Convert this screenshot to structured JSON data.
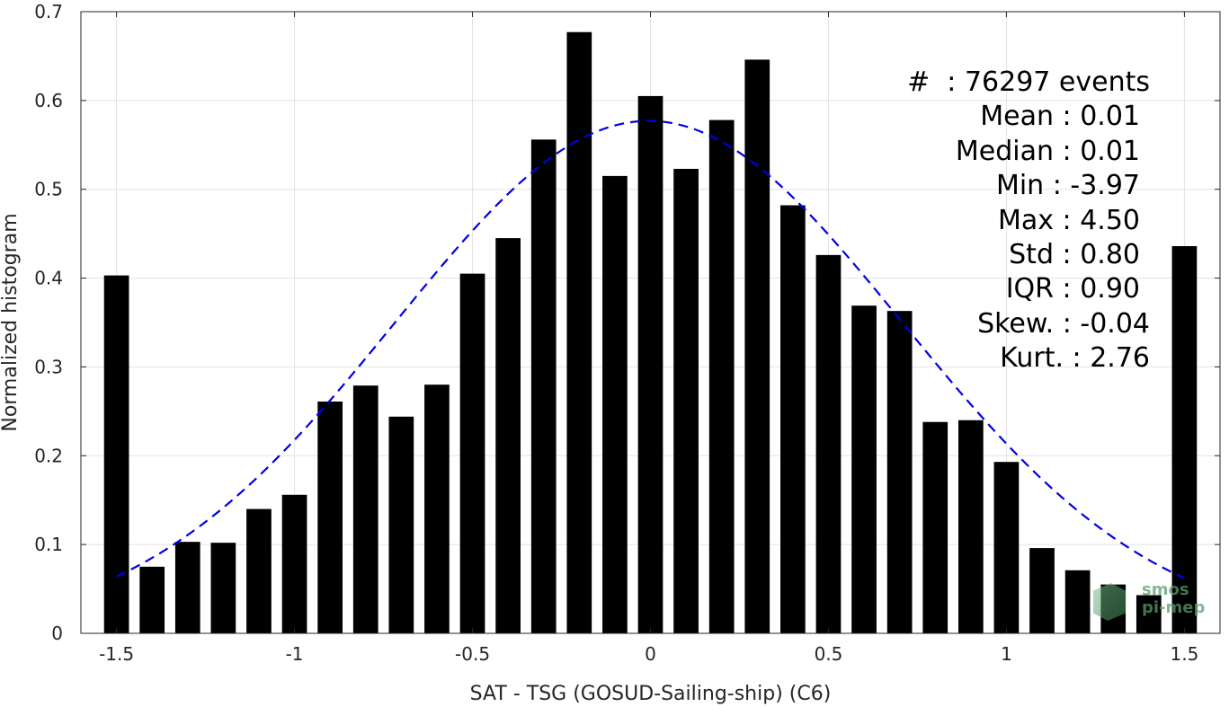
{
  "chart_data": {
    "type": "bar",
    "title": "",
    "xlabel": "SAT - TSG (GOSUD-Sailing-ship) (C6)",
    "ylabel": "Normalized histogram",
    "xlim": [
      -1.6,
      1.6
    ],
    "ylim": [
      0,
      0.7
    ],
    "xticks": [
      -1.5,
      -1,
      -0.5,
      0,
      0.5,
      1,
      1.5
    ],
    "xtick_labels": [
      "-1.5",
      "-1",
      "-0.5",
      "0",
      "0.5",
      "1",
      "1.5"
    ],
    "yticks": [
      0,
      0.1,
      0.2,
      0.3,
      0.4,
      0.5,
      0.6,
      0.7
    ],
    "ytick_labels": [
      "0",
      "0.1",
      "0.2",
      "0.3",
      "0.4",
      "0.5",
      "0.6",
      "0.7"
    ],
    "grid": true,
    "bar_color": "#000000",
    "bin_width": 0.1,
    "x": [
      -1.5,
      -1.4,
      -1.3,
      -1.2,
      -1.1,
      -1.0,
      -0.9,
      -0.8,
      -0.7,
      -0.6,
      -0.5,
      -0.4,
      -0.3,
      -0.2,
      -0.1,
      0.0,
      0.1,
      0.2,
      0.3,
      0.4,
      0.5,
      0.6,
      0.7,
      0.8,
      0.9,
      1.0,
      1.1,
      1.2,
      1.3,
      1.4,
      1.5
    ],
    "values": [
      0.403,
      0.075,
      0.103,
      0.102,
      0.14,
      0.156,
      0.261,
      0.279,
      0.244,
      0.28,
      0.405,
      0.445,
      0.556,
      0.677,
      0.515,
      0.605,
      0.523,
      0.578,
      0.646,
      0.482,
      0.426,
      0.369,
      0.363,
      0.238,
      0.24,
      0.193,
      0.096,
      0.071,
      0.055,
      0.043,
      0.436
    ],
    "fit_curve": {
      "type": "gaussian",
      "style": "dashed",
      "color": "#0000e6",
      "peak": 0.577,
      "center": -0.005,
      "x_range": [
        -1.5,
        1.5
      ],
      "y_at_edges": 0.063
    },
    "stats": [
      {
        "label": "#  ",
        "value": ": 76297 events"
      },
      {
        "label": "Mean",
        "value": ": 0.01"
      },
      {
        "label": "Median",
        "value": ": 0.01"
      },
      {
        "label": "Min",
        "value": ": -3.97"
      },
      {
        "label": "Max",
        "value": ": 4.50"
      },
      {
        "label": "Std",
        "value": ": 0.80"
      },
      {
        "label": "IQR",
        "value": ": 0.90"
      },
      {
        "label": "Skew. ",
        "value": ": -0.04"
      },
      {
        "label": "Kurt. ",
        "value": ": 2.76"
      }
    ]
  },
  "watermark": {
    "line1": "smos",
    "line2": "pi-mep"
  }
}
